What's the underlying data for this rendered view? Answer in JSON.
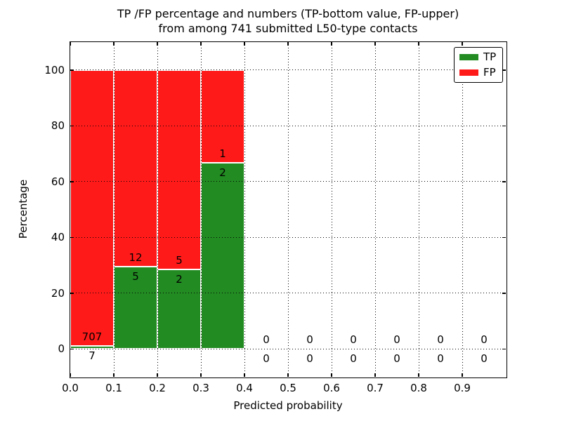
{
  "chart_data": {
    "type": "bar",
    "stacked": true,
    "title": "TP /FP percentage and numbers (TP-bottom value, FP-upper)\nfrom among 741 submitted L50-type contacts",
    "title_lines": [
      "TP /FP percentage and numbers (TP-bottom value, FP-upper)",
      "from among 741 submitted L50-type contacts"
    ],
    "total_submitted_contacts": 741,
    "xlabel": "Predicted probability",
    "ylabel": "Percentage",
    "xlim": [
      0.0,
      1.0
    ],
    "ylim": [
      -10,
      110
    ],
    "xticks": [
      "0.0",
      "0.1",
      "0.2",
      "0.3",
      "0.4",
      "0.5",
      "0.6",
      "0.7",
      "0.8",
      "0.9"
    ],
    "yticks": [
      0,
      20,
      40,
      60,
      80,
      100
    ],
    "grid": "dotted",
    "bin_width": 0.1,
    "bin_starts": [
      0.0,
      0.1,
      0.2,
      0.3,
      0.4,
      0.5,
      0.6,
      0.7,
      0.8,
      0.9
    ],
    "series": [
      {
        "name": "TP",
        "color": "#228B22",
        "counts": [
          7,
          5,
          2,
          2,
          0,
          0,
          0,
          0,
          0,
          0
        ],
        "percent": [
          0.98,
          29.41,
          28.57,
          66.67,
          0,
          0,
          0,
          0,
          0,
          0
        ]
      },
      {
        "name": "FP",
        "color": "#FF1A1A",
        "counts": [
          707,
          12,
          5,
          1,
          0,
          0,
          0,
          0,
          0,
          0
        ],
        "percent": [
          99.02,
          70.59,
          71.43,
          33.33,
          0,
          0,
          0,
          0,
          0,
          0
        ]
      }
    ],
    "legend": {
      "position": "upper right",
      "entries": [
        {
          "label": "TP",
          "color": "#228B22"
        },
        {
          "label": "FP",
          "color": "#FF1A1A"
        }
      ]
    }
  }
}
